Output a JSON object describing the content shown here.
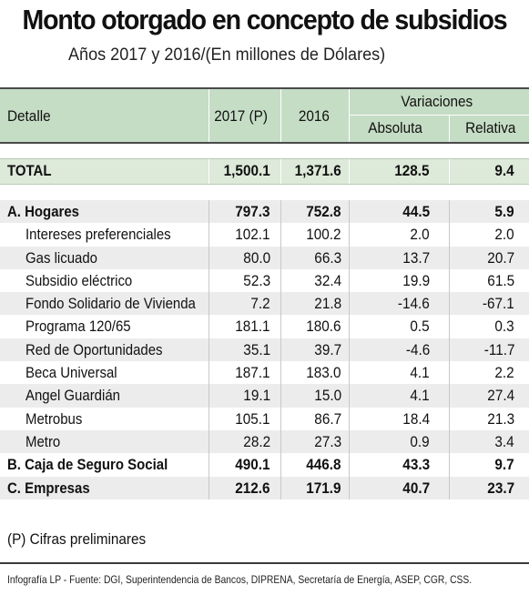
{
  "title": "Monto otorgado en concepto de subsidios",
  "subtitle": "Años 2017 y 2016/(En millones de Dólares)",
  "header": {
    "detalle": "Detalle",
    "y2017": "2017 (P)",
    "y2016": "2016",
    "variaciones": "Variaciones",
    "absoluta": "Absoluta",
    "relativa": "Relativa"
  },
  "total": {
    "label": "TOTAL",
    "v2017": "1,500.1",
    "v2016": "1,371.6",
    "abs": "128.5",
    "rel": "9.4"
  },
  "rows": [
    {
      "label": "A. Hogares",
      "v2017": "797.3",
      "v2016": "752.8",
      "abs": "44.5",
      "rel": "5.9"
    },
    {
      "label": "Intereses preferenciales",
      "v2017": "102.1",
      "v2016": "100.2",
      "abs": "2.0",
      "rel": "2.0"
    },
    {
      "label": "Gas licuado",
      "v2017": "80.0",
      "v2016": "66.3",
      "abs": "13.7",
      "rel": "20.7"
    },
    {
      "label": "Subsidio eléctrico",
      "v2017": "52.3",
      "v2016": "32.4",
      "abs": "19.9",
      "rel": "61.5"
    },
    {
      "label": "Fondo Solidario de Vivienda",
      "v2017": "7.2",
      "v2016": "21.8",
      "abs": "-14.6",
      "rel": "-67.1"
    },
    {
      "label": "Programa 120/65",
      "v2017": "181.1",
      "v2016": "180.6",
      "abs": "0.5",
      "rel": "0.3"
    },
    {
      "label": "Red de Oportunidades",
      "v2017": "35.1",
      "v2016": "39.7",
      "abs": "-4.6",
      "rel": "-11.7"
    },
    {
      "label": "Beca Universal",
      "v2017": "187.1",
      "v2016": "183.0",
      "abs": "4.1",
      "rel": "2.2"
    },
    {
      "label": "Angel Guardián",
      "v2017": "19.1",
      "v2016": "15.0",
      "abs": "4.1",
      "rel": "27.4"
    },
    {
      "label": "Metrobus",
      "v2017": "105.1",
      "v2016": "86.7",
      "abs": "18.4",
      "rel": "21.3"
    },
    {
      "label": "Metro",
      "v2017": "28.2",
      "v2016": "27.3",
      "abs": "0.9",
      "rel": "3.4"
    },
    {
      "label": "B. Caja de Seguro Social",
      "v2017": "490.1",
      "v2016": "446.8",
      "abs": "43.3",
      "rel": "9.7"
    },
    {
      "label": "C. Empresas",
      "v2017": "212.6",
      "v2016": "171.9",
      "abs": "40.7",
      "rel": "23.7"
    }
  ],
  "note": "(P) Cifras preliminares",
  "source": "Infografía LP - Fuente: DGI, Superintendencia de Bancos, DIPRENA, Secretaría de Energía, ASEP, CGR, CSS."
}
